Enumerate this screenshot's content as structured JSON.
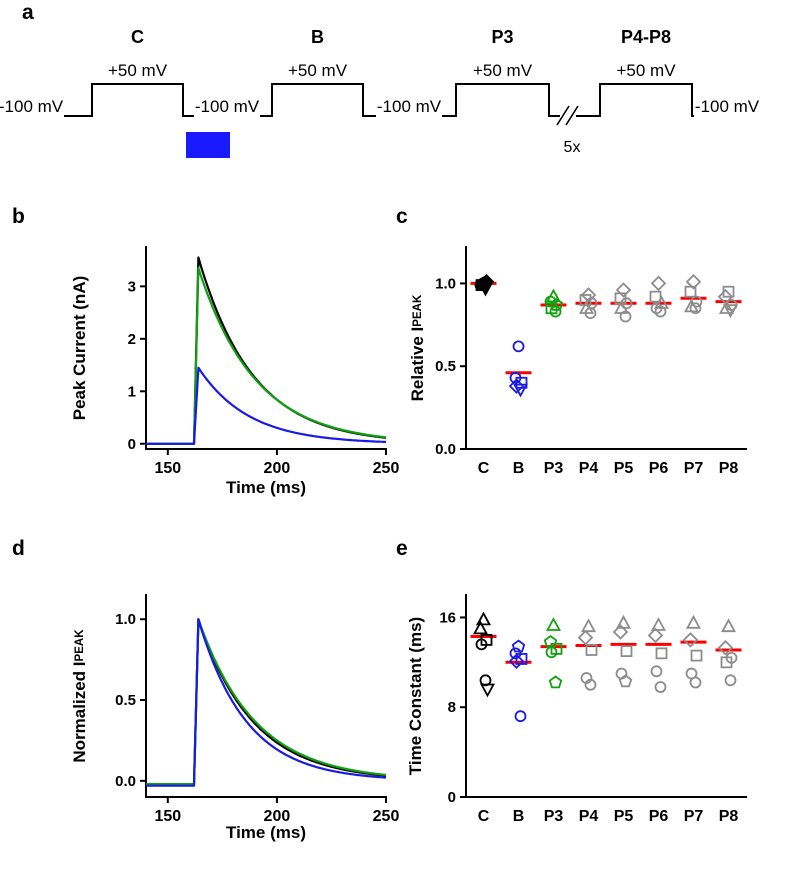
{
  "figure": {
    "background": "#ffffff",
    "panel_labels": {
      "a": "a",
      "b": "b",
      "c": "c",
      "d": "d",
      "e": "e"
    }
  },
  "protocol": {
    "trace_color": "#000000",
    "light_bar_color": "#1a1aff",
    "repeat_label": "5x",
    "pulses": [
      {
        "label": "C",
        "amplitude_label": "+50 mV"
      },
      {
        "label": "B",
        "amplitude_label": "+50 mV"
      },
      {
        "label": "P3",
        "amplitude_label": "+50 mV"
      },
      {
        "label": "P4-P8",
        "amplitude_label": "+50 mV"
      }
    ],
    "baseline_labels": [
      "-100 mV",
      "-100 mV",
      "-100 mV",
      "-100 mV"
    ]
  },
  "chart_data": [
    {
      "id": "b",
      "type": "line",
      "xlabel": "Time (ms)",
      "ylabel": "Peak Current (nA)",
      "xlim": [
        140,
        250
      ],
      "ylim": [
        -0.1,
        3.75
      ],
      "xticks": [
        150,
        200,
        250
      ],
      "yticks": [
        0,
        1,
        2,
        3
      ],
      "model": "step_exponential_decay",
      "series": [
        {
          "name": "control",
          "color": "#000000",
          "baseline": 0,
          "onset_ms": 162,
          "peak_ms": 164,
          "peak": 3.55,
          "tau_ms": 25
        },
        {
          "name": "recovery",
          "color": "#10a010",
          "baseline": 0,
          "onset_ms": 162,
          "peak_ms": 164,
          "peak": 3.35,
          "tau_ms": 26
        },
        {
          "name": "bleached",
          "color": "#1a1ae6",
          "baseline": 0,
          "onset_ms": 162,
          "peak_ms": 164,
          "peak": 1.45,
          "tau_ms": 23
        }
      ]
    },
    {
      "id": "c",
      "type": "scatter",
      "ylabel_main": "Relative I",
      "ylabel_sub": "PEAK",
      "categories": [
        "C",
        "B",
        "P3",
        "P4",
        "P5",
        "P6",
        "P7",
        "P8"
      ],
      "ylim": [
        0,
        1.22
      ],
      "yticks": [
        0,
        0.5,
        1
      ],
      "ytick_labels": [
        "0.0",
        "0.5",
        "1.0"
      ],
      "mean_color": "#ff0000",
      "groups": [
        {
          "category": "C",
          "color": "#000000",
          "filled": true,
          "mean": 1.0,
          "points": [
            {
              "shape": "hexagon",
              "value": 1.0
            },
            {
              "shape": "circle",
              "value": 0.99
            },
            {
              "shape": "diamond",
              "value": 1.01
            },
            {
              "shape": "square",
              "value": 0.99
            },
            {
              "shape": "triangle-down",
              "value": 0.97
            }
          ]
        },
        {
          "category": "B",
          "color": "#1a1ae6",
          "filled": false,
          "mean": 0.46,
          "points": [
            {
              "shape": "circle",
              "value": 0.62
            },
            {
              "shape": "circle",
              "value": 0.43
            },
            {
              "shape": "square",
              "value": 0.4
            },
            {
              "shape": "diamond",
              "value": 0.38
            },
            {
              "shape": "triangle-down",
              "value": 0.36
            }
          ]
        },
        {
          "category": "P3",
          "color": "#10a010",
          "filled": false,
          "mean": 0.87,
          "points": [
            {
              "shape": "triangle-up",
              "value": 0.92
            },
            {
              "shape": "circle",
              "value": 0.89
            },
            {
              "shape": "pentagon",
              "value": 0.87
            },
            {
              "shape": "square",
              "value": 0.85
            },
            {
              "shape": "circle",
              "value": 0.83
            }
          ]
        },
        {
          "category": "P4",
          "color": "#8c8c8c",
          "filled": false,
          "mean": 0.88,
          "points": [
            {
              "shape": "diamond",
              "value": 0.93
            },
            {
              "shape": "square",
              "value": 0.9
            },
            {
              "shape": "circle",
              "value": 0.88
            },
            {
              "shape": "triangle-up",
              "value": 0.85
            },
            {
              "shape": "circle",
              "value": 0.82
            }
          ]
        },
        {
          "category": "P5",
          "color": "#8c8c8c",
          "filled": false,
          "mean": 0.88,
          "points": [
            {
              "shape": "diamond",
              "value": 0.96
            },
            {
              "shape": "square",
              "value": 0.91
            },
            {
              "shape": "circle",
              "value": 0.88
            },
            {
              "shape": "triangle-up",
              "value": 0.85
            },
            {
              "shape": "circle",
              "value": 0.8
            }
          ]
        },
        {
          "category": "P6",
          "color": "#8c8c8c",
          "filled": false,
          "mean": 0.88,
          "points": [
            {
              "shape": "diamond",
              "value": 1.0
            },
            {
              "shape": "square",
              "value": 0.92
            },
            {
              "shape": "triangle-up",
              "value": 0.88
            },
            {
              "shape": "circle",
              "value": 0.85
            },
            {
              "shape": "circle",
              "value": 0.83
            }
          ]
        },
        {
          "category": "P7",
          "color": "#8c8c8c",
          "filled": false,
          "mean": 0.91,
          "points": [
            {
              "shape": "diamond",
              "value": 1.01
            },
            {
              "shape": "square",
              "value": 0.95
            },
            {
              "shape": "circle",
              "value": 0.89
            },
            {
              "shape": "triangle-up",
              "value": 0.86
            },
            {
              "shape": "circle",
              "value": 0.85
            }
          ]
        },
        {
          "category": "P8",
          "color": "#8c8c8c",
          "filled": false,
          "mean": 0.89,
          "points": [
            {
              "shape": "square",
              "value": 0.95
            },
            {
              "shape": "diamond",
              "value": 0.92
            },
            {
              "shape": "circle",
              "value": 0.87
            },
            {
              "shape": "triangle-up",
              "value": 0.85
            },
            {
              "shape": "triangle-down",
              "value": 0.84
            }
          ]
        }
      ]
    },
    {
      "id": "d",
      "type": "line",
      "xlabel": "Time (ms)",
      "ylabel_main": "Normalized I",
      "ylabel_sub": "PEAK",
      "xlim": [
        140,
        250
      ],
      "ylim": [
        -0.1,
        1.15
      ],
      "xticks": [
        150,
        200,
        250
      ],
      "yticks": [
        0,
        0.5,
        1
      ],
      "ytick_labels": [
        "0.0",
        "0.5",
        "1.0"
      ],
      "model": "step_exponential_decay",
      "series": [
        {
          "name": "control",
          "color": "#000000",
          "baseline": -0.02,
          "onset_ms": 162,
          "peak_ms": 164,
          "peak": 1.0,
          "tau_ms": 25
        },
        {
          "name": "recovery",
          "color": "#10a010",
          "baseline": -0.02,
          "onset_ms": 162,
          "peak_ms": 164,
          "peak": 1.0,
          "tau_ms": 26
        },
        {
          "name": "bleached",
          "color": "#1a1ae6",
          "baseline": -0.03,
          "onset_ms": 162,
          "peak_ms": 164,
          "peak": 1.0,
          "tau_ms": 22
        }
      ]
    },
    {
      "id": "e",
      "type": "scatter",
      "ylabel": "Time Constant (ms)",
      "categories": [
        "C",
        "B",
        "P3",
        "P4",
        "P5",
        "P6",
        "P7",
        "P8"
      ],
      "ylim": [
        0,
        18
      ],
      "yticks": [
        0,
        8,
        16
      ],
      "ytick_labels": [
        "0",
        "8",
        "16"
      ],
      "mean_color": "#ff0000",
      "groups": [
        {
          "category": "C",
          "color": "#000000",
          "filled": false,
          "mean": 14.3,
          "points": [
            {
              "shape": "triangle-up",
              "value": 15.8
            },
            {
              "shape": "triangle-up",
              "value": 15.0
            },
            {
              "shape": "square",
              "value": 14.0
            },
            {
              "shape": "circle",
              "value": 13.6
            },
            {
              "shape": "circle",
              "value": 10.4
            },
            {
              "shape": "triangle-down",
              "value": 9.6
            }
          ]
        },
        {
          "category": "B",
          "color": "#1a1ae6",
          "filled": false,
          "mean": 12.0,
          "points": [
            {
              "shape": "pentagon",
              "value": 13.4
            },
            {
              "shape": "circle",
              "value": 12.8
            },
            {
              "shape": "square",
              "value": 12.3
            },
            {
              "shape": "diamond",
              "value": 12.1
            },
            {
              "shape": "circle",
              "value": 7.2
            }
          ]
        },
        {
          "category": "P3",
          "color": "#10a010",
          "filled": false,
          "mean": 13.4,
          "points": [
            {
              "shape": "triangle-up",
              "value": 15.3
            },
            {
              "shape": "pentagon",
              "value": 13.8
            },
            {
              "shape": "square",
              "value": 13.2
            },
            {
              "shape": "circle",
              "value": 12.9
            },
            {
              "shape": "pentagon",
              "value": 10.2
            }
          ]
        },
        {
          "category": "P4",
          "color": "#8c8c8c",
          "filled": false,
          "mean": 13.5,
          "points": [
            {
              "shape": "triangle-up",
              "value": 15.2
            },
            {
              "shape": "diamond",
              "value": 14.2
            },
            {
              "shape": "square",
              "value": 13.1
            },
            {
              "shape": "circle",
              "value": 10.6
            },
            {
              "shape": "circle",
              "value": 10.0
            }
          ]
        },
        {
          "category": "P5",
          "color": "#8c8c8c",
          "filled": false,
          "mean": 13.6,
          "points": [
            {
              "shape": "triangle-up",
              "value": 15.5
            },
            {
              "shape": "diamond",
              "value": 14.7
            },
            {
              "shape": "square",
              "value": 13.0
            },
            {
              "shape": "circle",
              "value": 11.0
            },
            {
              "shape": "pentagon",
              "value": 10.3
            }
          ]
        },
        {
          "category": "P6",
          "color": "#8c8c8c",
          "filled": false,
          "mean": 13.6,
          "points": [
            {
              "shape": "triangle-up",
              "value": 15.3
            },
            {
              "shape": "diamond",
              "value": 14.4
            },
            {
              "shape": "square",
              "value": 12.8
            },
            {
              "shape": "circle",
              "value": 11.2
            },
            {
              "shape": "circle",
              "value": 9.8
            }
          ]
        },
        {
          "category": "P7",
          "color": "#8c8c8c",
          "filled": false,
          "mean": 13.8,
          "points": [
            {
              "shape": "triangle-up",
              "value": 15.5
            },
            {
              "shape": "diamond",
              "value": 14.0
            },
            {
              "shape": "square",
              "value": 12.6
            },
            {
              "shape": "circle",
              "value": 11.0
            },
            {
              "shape": "circle",
              "value": 10.2
            }
          ]
        },
        {
          "category": "P8",
          "color": "#8c8c8c",
          "filled": false,
          "mean": 13.1,
          "points": [
            {
              "shape": "triangle-up",
              "value": 15.2
            },
            {
              "shape": "diamond",
              "value": 13.3
            },
            {
              "shape": "circle",
              "value": 12.4
            },
            {
              "shape": "square",
              "value": 12.0
            },
            {
              "shape": "circle",
              "value": 10.4
            }
          ]
        }
      ]
    }
  ]
}
